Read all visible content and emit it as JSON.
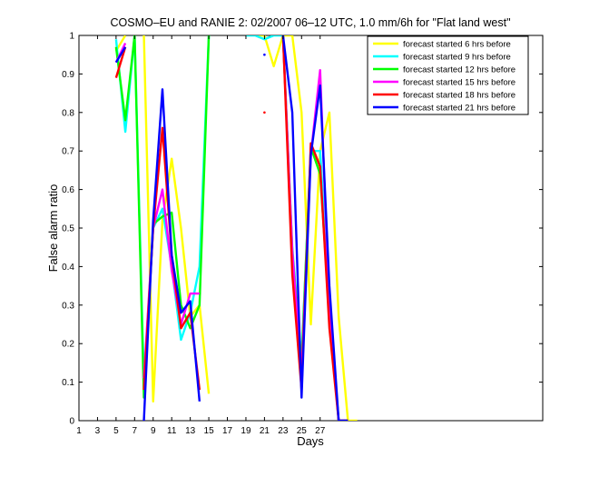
{
  "chart_data": {
    "type": "line",
    "title": "COSMO–EU and RANIE 2: 02/2007 06–12 UTC, 1.0 mm/6h for \"Flat land west\"",
    "xlabel": "Days",
    "ylabel": "False alarm ratio",
    "xlim": [
      1,
      51
    ],
    "ylim": [
      0,
      1
    ],
    "x_ticks": [
      1,
      3,
      5,
      7,
      9,
      11,
      13,
      15,
      17,
      19,
      21,
      23,
      25,
      27
    ],
    "y_ticks": [
      0,
      0.1,
      0.2,
      0.3,
      0.4,
      0.5,
      0.6,
      0.7,
      0.8,
      0.9,
      1
    ],
    "y_tick_labels": [
      "0",
      "0.1",
      "0.2",
      "0.3",
      "0.4",
      "0.5",
      "0.6",
      "0.7",
      "0.8",
      "0.9",
      "1"
    ],
    "grid": false,
    "legend_position": "top-right",
    "series": [
      {
        "name": "forecast started 6 hrs before",
        "color": "#ffff00",
        "values": [
          null,
          null,
          null,
          null,
          0.96,
          1.0,
          null,
          1.0,
          0.05,
          0.52,
          0.68,
          0.5,
          0.27,
          0.3,
          0.07,
          null,
          null,
          null,
          null,
          1.0,
          1.0,
          0.92,
          1.0,
          1.0,
          0.8,
          0.25,
          0.7,
          0.8,
          0.27,
          0.0,
          0.0
        ]
      },
      {
        "name": "forecast started 9 hrs before",
        "color": "#00ffff",
        "values": [
          null,
          null,
          null,
          null,
          0.99,
          0.75,
          1.0,
          0.1,
          0.5,
          0.55,
          0.4,
          0.21,
          0.28,
          0.4,
          1.0,
          null,
          null,
          null,
          1.0,
          1.0,
          0.99,
          1.0,
          1.0,
          0.45,
          0.16,
          0.7,
          0.7,
          0.3,
          0.0,
          0.0
        ]
      },
      {
        "name": "forecast started 12 hrs before",
        "color": "#00ff00",
        "values": [
          null,
          null,
          null,
          null,
          0.97,
          0.78,
          1.0,
          0.06,
          0.51,
          0.53,
          0.54,
          0.3,
          0.24,
          0.3,
          1.0,
          null,
          null,
          null,
          null,
          null,
          null,
          null,
          1.0,
          0.44,
          0.15,
          0.71,
          0.64,
          0.28,
          0.0,
          0.0
        ]
      },
      {
        "name": "forecast started 15 hrs before",
        "color": "#ff00ff",
        "values": [
          null,
          null,
          null,
          null,
          0.93,
          0.98,
          null,
          0.11,
          0.5,
          0.6,
          0.39,
          0.25,
          0.33,
          0.33,
          null,
          null,
          null,
          null,
          null,
          null,
          null,
          null,
          1.0,
          0.44,
          0.12,
          0.69,
          0.91,
          0.28,
          0.0,
          0.0
        ]
      },
      {
        "name": "forecast started 18 hrs before",
        "color": "#ff0000",
        "values": [
          null,
          null,
          null,
          null,
          0.89,
          0.97,
          null,
          0.08,
          0.5,
          0.76,
          0.43,
          0.24,
          0.28,
          0.08,
          null,
          null,
          null,
          null,
          null,
          null,
          0.8,
          null,
          1.0,
          0.38,
          0.08,
          0.72,
          0.66,
          0.24,
          0.0,
          0.0
        ]
      },
      {
        "name": "forecast started 21 hrs before",
        "color": "#0000ff",
        "values": [
          null,
          null,
          null,
          null,
          0.93,
          0.97,
          null,
          0.0,
          0.52,
          0.86,
          0.43,
          0.28,
          0.31,
          0.05,
          null,
          null,
          null,
          null,
          null,
          null,
          0.95,
          null,
          1.0,
          0.8,
          0.06,
          0.69,
          0.87,
          0.35,
          0.0,
          0.0
        ]
      }
    ]
  }
}
